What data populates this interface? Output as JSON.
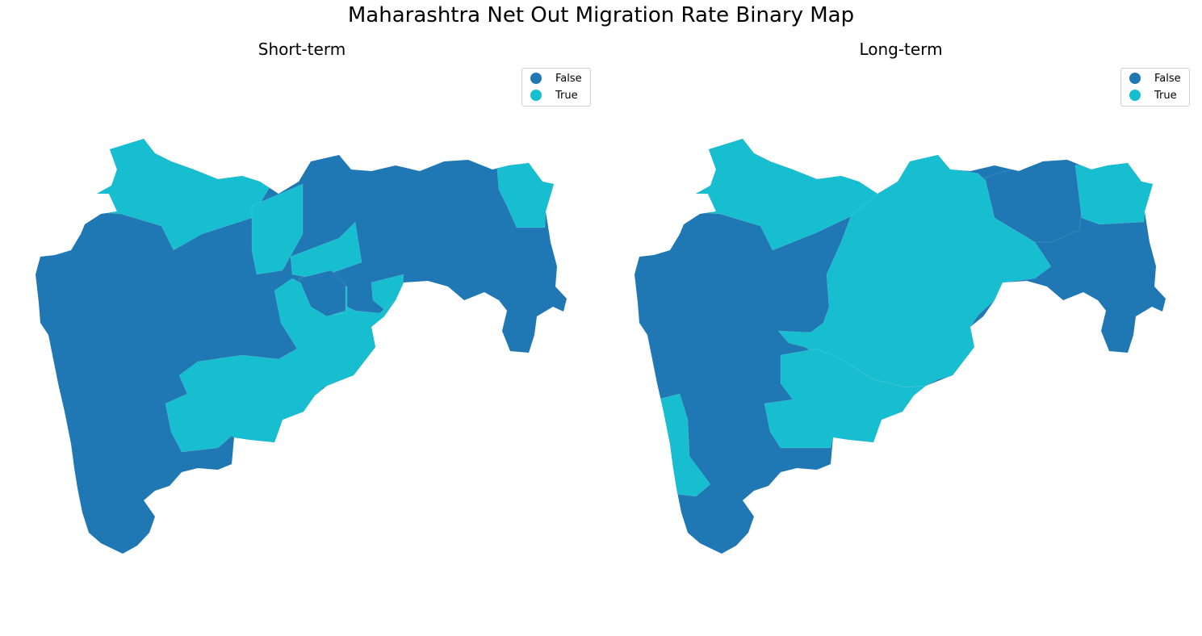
{
  "title": "Maharashtra Net Out Migration Rate Binary Map",
  "colors": {
    "false": "#1f77b4",
    "true": "#17becf"
  },
  "maps": [
    {
      "id": "short-term",
      "subtitle": "Short-term",
      "legend": [
        {
          "label": "False",
          "color": "#1f77b4"
        },
        {
          "label": "True",
          "color": "#17becf"
        }
      ],
      "regions": [
        {
          "name": "northwest",
          "value": true
        },
        {
          "name": "nashik",
          "value": true
        },
        {
          "name": "west-coast-central",
          "value": false
        },
        {
          "name": "jalgaon-area",
          "value": true
        },
        {
          "name": "northeast-belt",
          "value": false
        },
        {
          "name": "amravati-band",
          "value": true
        },
        {
          "name": "far-northeast",
          "value": true
        },
        {
          "name": "marathwada-south",
          "value": true
        },
        {
          "name": "hingoli-pocket",
          "value": false
        },
        {
          "name": "south-konkan",
          "value": false
        },
        {
          "name": "vidarbha-east",
          "value": false
        }
      ]
    },
    {
      "id": "long-term",
      "subtitle": "Long-term",
      "legend": [
        {
          "label": "False",
          "color": "#1f77b4"
        },
        {
          "label": "True",
          "color": "#17becf"
        }
      ],
      "regions": [
        {
          "name": "northwest",
          "value": true
        },
        {
          "name": "west-coast-central",
          "value": false
        },
        {
          "name": "central-band",
          "value": true
        },
        {
          "name": "south-interior",
          "value": true
        },
        {
          "name": "konkan-strip",
          "value": true
        },
        {
          "name": "south-konkan",
          "value": false
        },
        {
          "name": "nagpur-area",
          "value": false
        },
        {
          "name": "far-northeast",
          "value": true
        },
        {
          "name": "vidarbha-east",
          "value": false
        }
      ]
    }
  ]
}
